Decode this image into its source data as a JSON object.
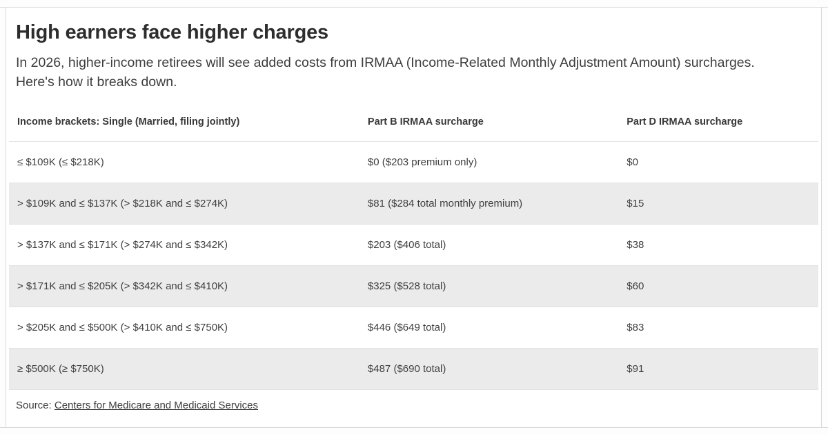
{
  "chart_data": {
    "type": "table",
    "title": "High earners face higher charges",
    "subtitle": "In 2026, higher-income retirees will see added costs from IRMAA (Income-Related Monthly Adjustment Amount) surcharges. Here's how it breaks down.",
    "columns": [
      "Income brackets: Single (Married, filing jointly)",
      "Part B IRMAA surcharge",
      "Part D IRMAA surcharge"
    ],
    "rows": [
      [
        "≤ $109K (≤ $218K)",
        "$0 ($203 premium only)",
        "$0"
      ],
      [
        "> $109K and ≤ $137K (> $218K and ≤ $274K)",
        "$81 ($284 total monthly premium)",
        "$15"
      ],
      [
        "> $137K and ≤ $171K (> $274K and ≤ $342K)",
        "$203 ($406 total)",
        "$38"
      ],
      [
        "> $171K and ≤ $205K (> $342K and ≤ $410K)",
        "$325 ($528 total)",
        "$60"
      ],
      [
        "> $205K and ≤ $500K (> $410K and ≤ $750K)",
        "$446 ($649 total)",
        "$83"
      ],
      [
        "≥ $500K (≥ $750K)",
        "$487 ($690 total)",
        "$91"
      ]
    ],
    "source": "Centers for Medicare and Medicaid Services",
    "layout": {
      "alternating_rows": true,
      "legend": "none",
      "grid": "horizontal-dividers"
    }
  },
  "footer": {
    "source_label": "Source: "
  },
  "colors": {
    "row_alt_background": "#ebebeb",
    "divider": "#e2e2e2",
    "frame_border": "#d8d8d8",
    "title_text": "#2d2d2d",
    "body_text": "#3d3d3d"
  }
}
